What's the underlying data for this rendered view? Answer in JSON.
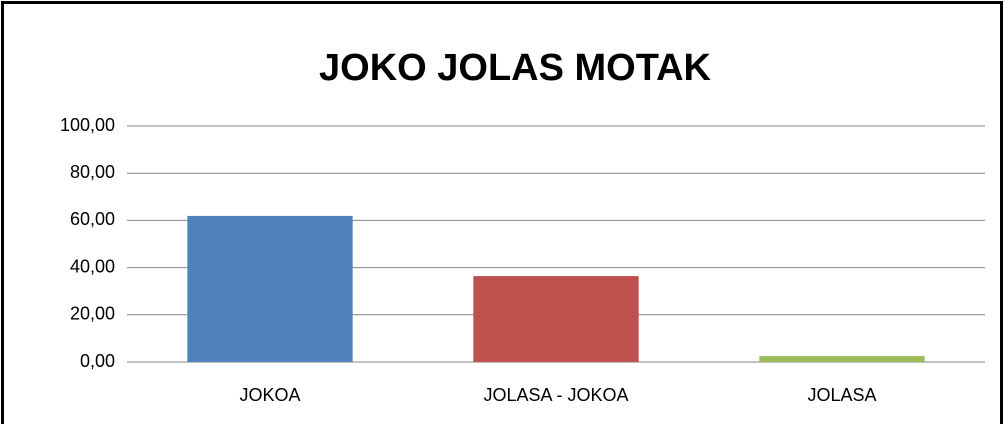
{
  "chart_data": {
    "type": "bar",
    "title": "JOKO JOLAS MOTAK",
    "categories": [
      "JOKOA",
      "JOLASA - JOKOA",
      "JOLASA"
    ],
    "values": [
      61.9,
      36.4,
      2.5
    ],
    "colors": [
      "#4f81bd",
      "#c0504d",
      "#9bbb59"
    ],
    "ylim": [
      0,
      100
    ],
    "yticks": [
      {
        "value": 0,
        "label": "0,00"
      },
      {
        "value": 20,
        "label": "20,00"
      },
      {
        "value": 40,
        "label": "40,00"
      },
      {
        "value": 60,
        "label": "60,00"
      },
      {
        "value": 80,
        "label": "80,00"
      },
      {
        "value": 100,
        "label": "100,00"
      }
    ],
    "grid": true
  }
}
